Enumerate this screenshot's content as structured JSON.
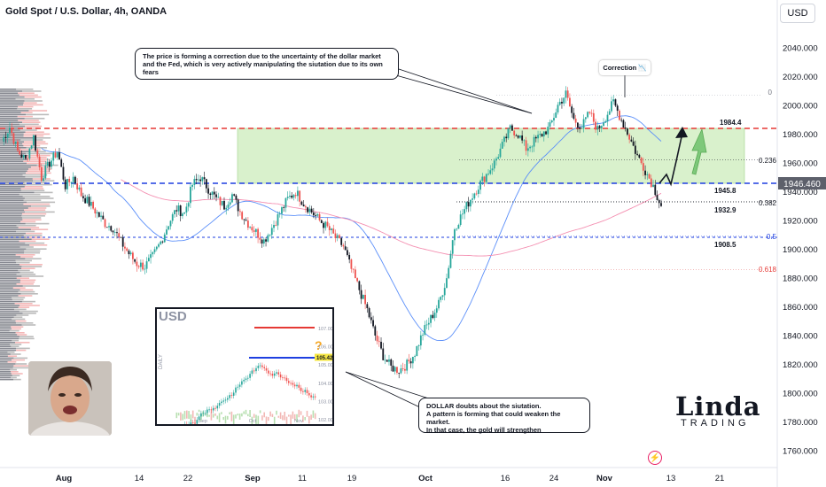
{
  "header": {
    "title": "Gold Spot / U.S. Dollar, 4h, OANDA",
    "currency_button": "USD"
  },
  "annotations": {
    "top_note": "The price is forming a correction due to the uncertainty of the dollar market\nand the Fed, which is very actively manipulating the siutation due to its own fears",
    "correction_label": "Correction",
    "bottom_note": "DOLLAR doubts about the siutation.\nA pattern is forming that could weaken the market.\nIn that case, the gold will strengthen"
  },
  "inset": {
    "title": "USD",
    "side_label": "DAILY",
    "question_mark": "?"
  },
  "logo": {
    "line1": "Linda",
    "line2": "TRADING"
  },
  "colors": {
    "up": "#26a69a",
    "down": "#ef5350",
    "candle_dark": "#131722",
    "resistance": "#e53935",
    "support": "#1e3fe0",
    "ma_blue": "#5b8ff9",
    "ma_pink": "#f48fb1",
    "zone": "#b9e6a3",
    "price_badge": "#5d606b",
    "arrow_green": "#7ec87a"
  },
  "chart_data": {
    "type": "candlestick",
    "instrument": "Gold Spot / U.S. Dollar",
    "timeframe": "4h",
    "source": "OANDA",
    "y_axis": {
      "ticks": [
        "2040.000",
        "2020.000",
        "2000.000",
        "1980.000",
        "1960.000",
        "1940.000",
        "1920.000",
        "1900.000",
        "1880.000",
        "1860.000",
        "1840.000",
        "1820.000",
        "1800.000",
        "1780.000",
        "1760.000"
      ],
      "range": [
        1752,
        2062
      ]
    },
    "x_axis": {
      "ticks": [
        "Aug",
        "14",
        "22",
        "Sep",
        "11",
        "19",
        "Oct",
        "16",
        "24",
        "Nov",
        "13",
        "21"
      ]
    },
    "last_price": "1946.460",
    "levels": [
      {
        "name": "resistance",
        "value": 1984.4,
        "label": "1984.4",
        "style": "dashed-red"
      },
      {
        "name": "support",
        "value": 1945.8,
        "label": "1945.8",
        "style": "dashed-blue"
      },
      {
        "name": "support-2",
        "value": 1932.9,
        "label": "1932.9",
        "style": "dotted-dark"
      },
      {
        "name": "support-3",
        "value": 1908.5,
        "label": "1908.5",
        "style": "dotted-blue"
      }
    ],
    "fibonacci": [
      {
        "ratio": "0",
        "value": 2007
      },
      {
        "ratio": "0.236",
        "value": 1962
      },
      {
        "ratio": "0.382",
        "value": 1933
      },
      {
        "ratio": "0.5",
        "value": 1909
      },
      {
        "ratio": "0.618",
        "value": 1886
      }
    ],
    "zone": {
      "from": 1945.8,
      "to": 1984.4
    },
    "price_path": [
      1975,
      1985,
      1968,
      1962,
      1978,
      1950,
      1960,
      1968,
      1944,
      1950,
      1938,
      1932,
      1925,
      1918,
      1915,
      1905,
      1897,
      1890,
      1888,
      1895,
      1905,
      1918,
      1928,
      1925,
      1945,
      1950,
      1942,
      1935,
      1930,
      1938,
      1926,
      1918,
      1912,
      1906,
      1915,
      1925,
      1935,
      1940,
      1932,
      1926,
      1920,
      1915,
      1908,
      1902,
      1886,
      1872,
      1858,
      1840,
      1826,
      1818,
      1816,
      1820,
      1828,
      1842,
      1852,
      1862,
      1880,
      1915,
      1925,
      1935,
      1944,
      1952,
      1960,
      1972,
      1984,
      1980,
      1970,
      1975,
      1980,
      1985,
      2000,
      2008,
      1990,
      1985,
      1995,
      1983,
      1992,
      2002,
      1990,
      1978,
      1965,
      1955,
      1944,
      1930
    ]
  }
}
